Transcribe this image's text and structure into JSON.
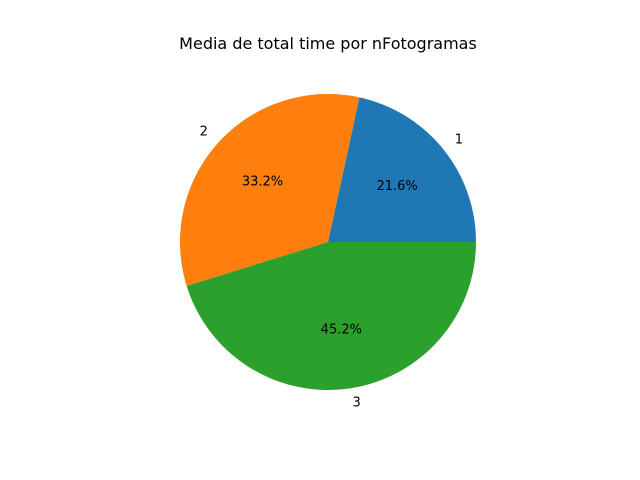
{
  "chart_data": {
    "type": "pie",
    "title": "Media de total time por nFotogramas",
    "categories": [
      "1",
      "2",
      "3"
    ],
    "values": [
      21.6,
      33.2,
      45.2
    ],
    "value_labels": [
      "21.6%",
      "33.2%",
      "45.2%"
    ],
    "colors": [
      "#1f77b4",
      "#ff7f0e",
      "#2ca02c"
    ],
    "start_angle_deg": 0,
    "direction": "counterclockwise",
    "legend": "none"
  }
}
